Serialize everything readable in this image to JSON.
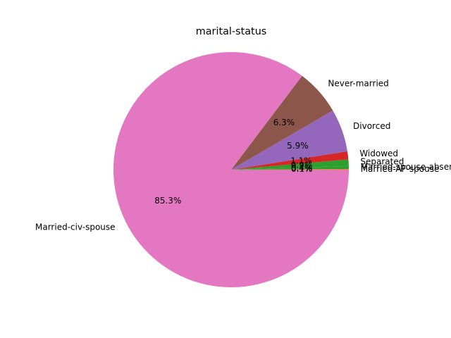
{
  "chart_data": {
    "type": "pie",
    "title": "marital-status",
    "slices": [
      {
        "label": "Married-AF-spouse",
        "value": 0.1,
        "pct_label": "0.1%",
        "color": "#ff7f0e"
      },
      {
        "label": "Married-spouse-absent",
        "value": 0.4,
        "pct_label": "0.4%",
        "color": "#2ca02c"
      },
      {
        "label": "Separated",
        "value": 0.9,
        "pct_label": "0.9%",
        "color": "#2ca02c"
      },
      {
        "label": "Widowed",
        "value": 1.1,
        "pct_label": "1.1%",
        "color": "#d62728"
      },
      {
        "label": "Divorced",
        "value": 5.9,
        "pct_label": "5.9%",
        "color": "#9467bd"
      },
      {
        "label": "Never-married",
        "value": 6.3,
        "pct_label": "6.3%",
        "color": "#8c564b"
      },
      {
        "label": "Married-civ-spouse",
        "value": 85.3,
        "pct_label": "85.3%",
        "color": "#e377c2"
      }
    ]
  }
}
